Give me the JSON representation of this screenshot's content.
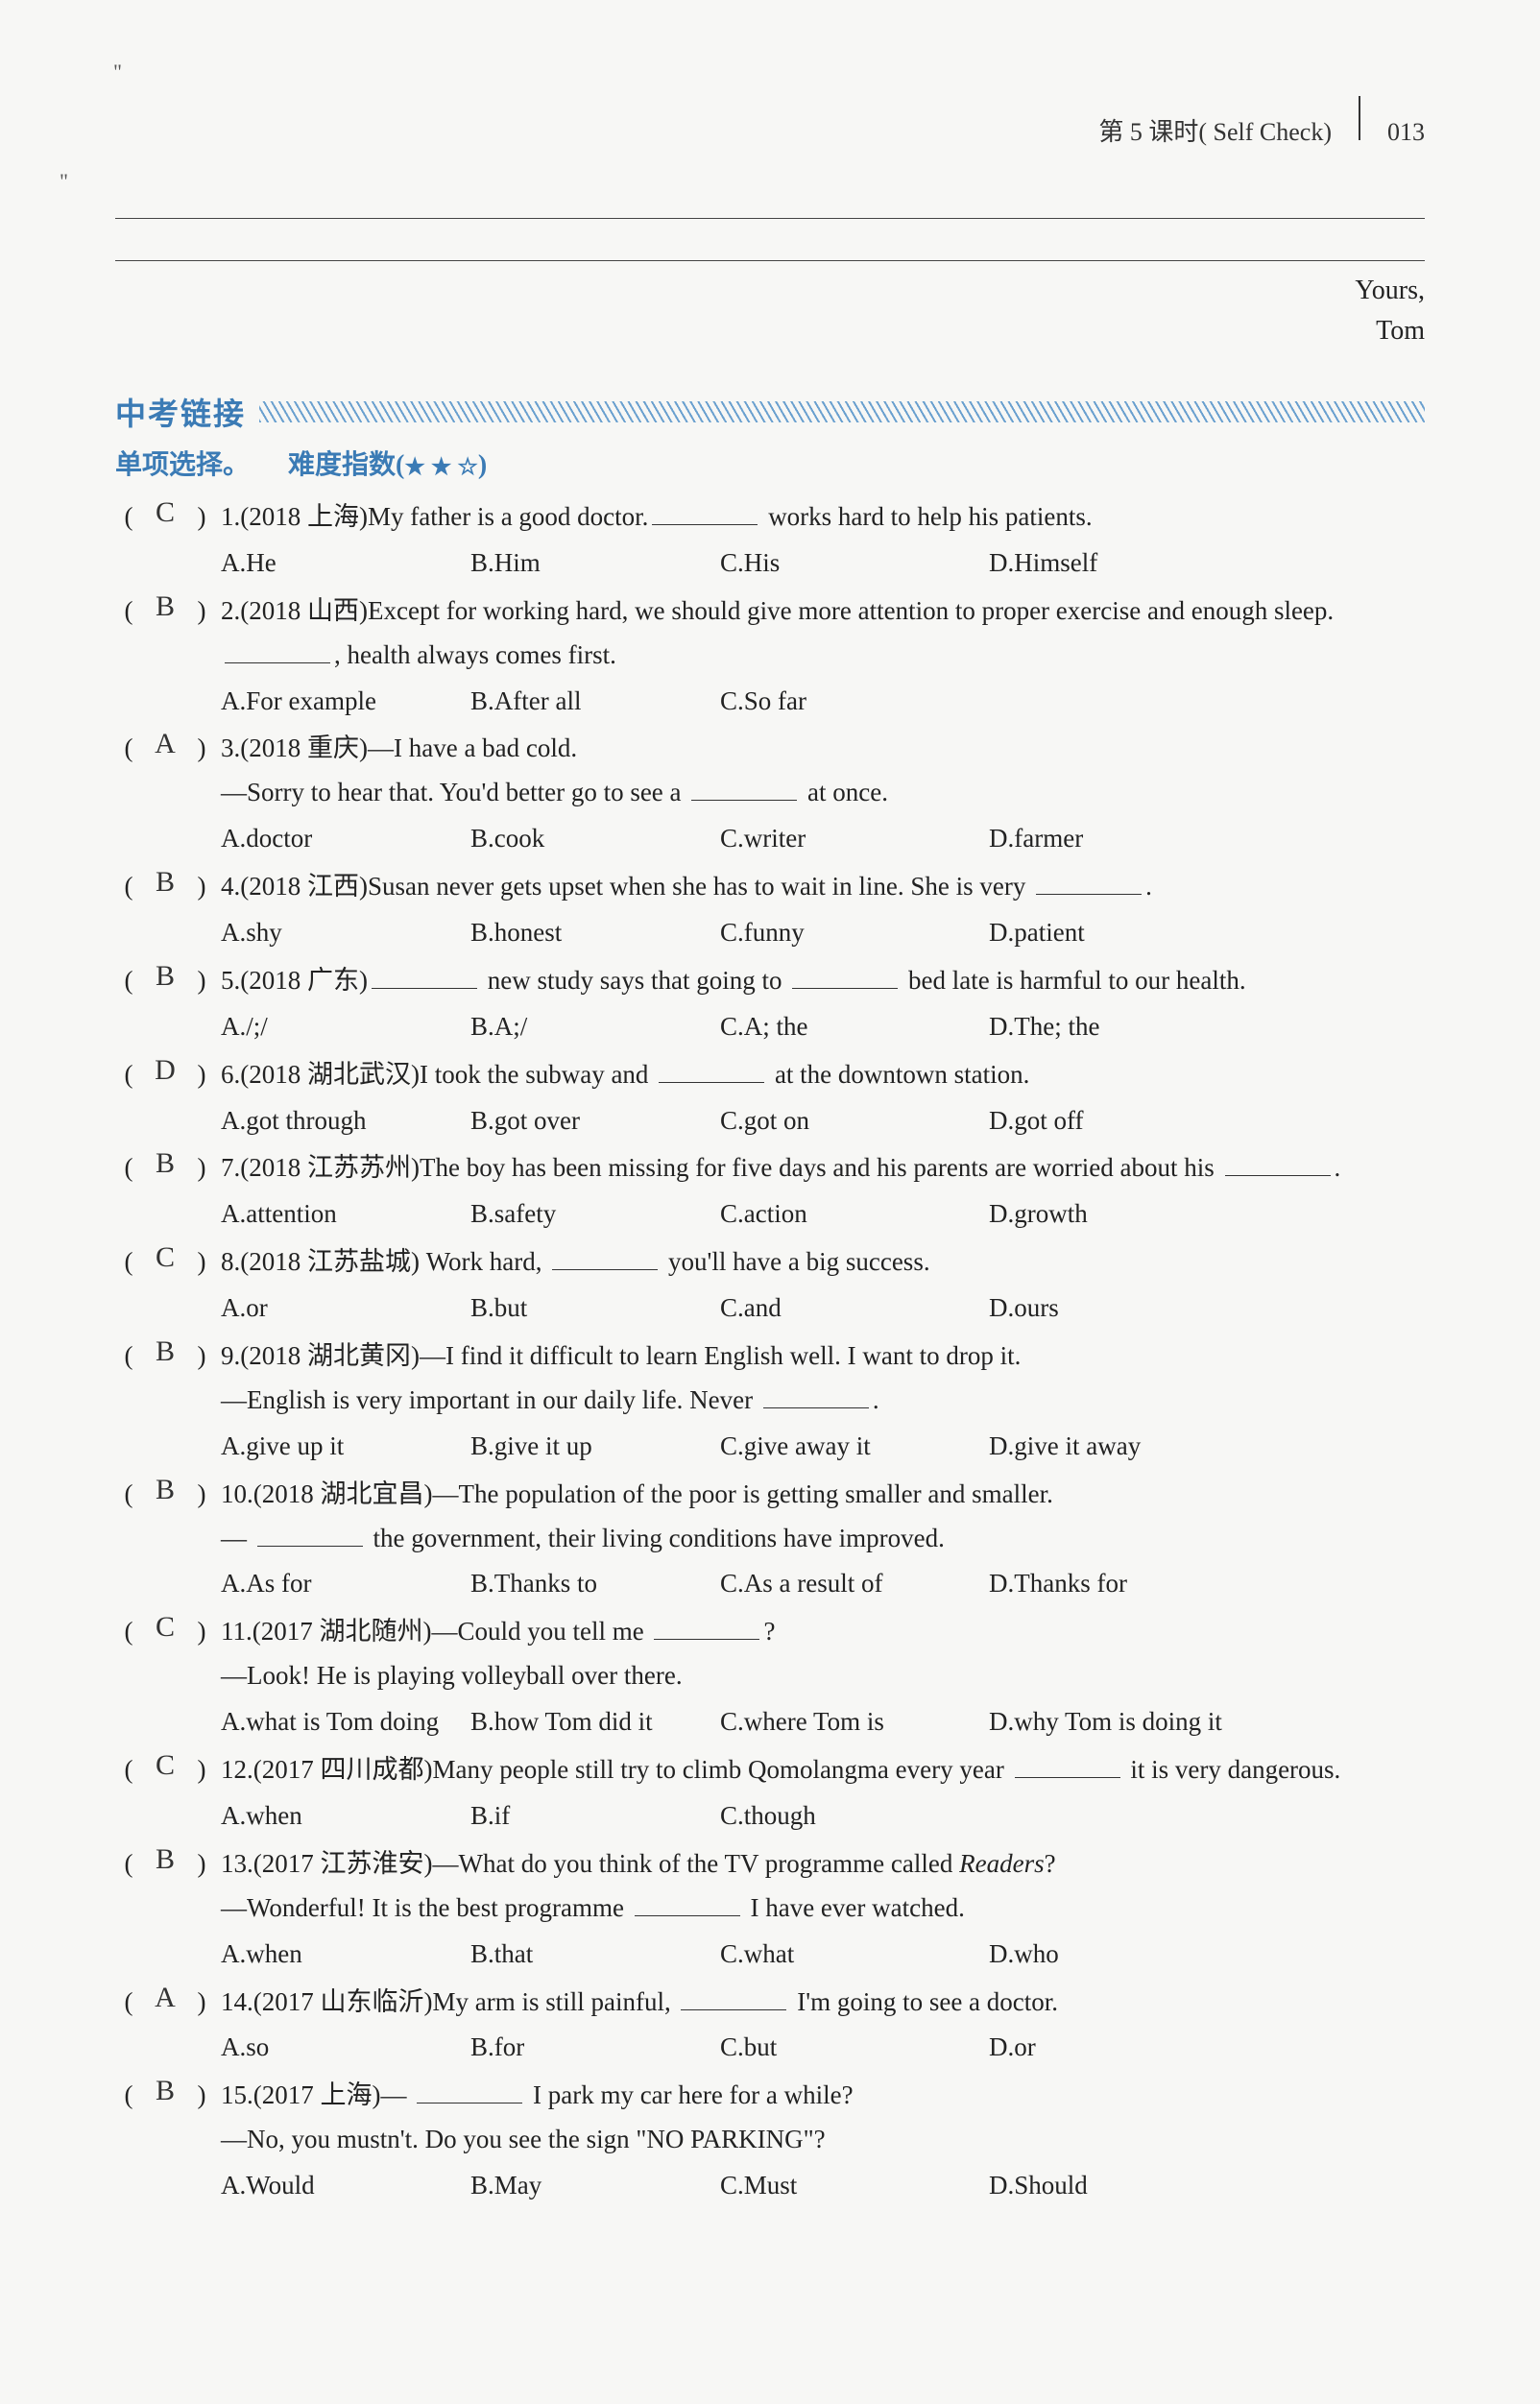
{
  "header": {
    "chapter": "第 5 课时( Self Check)",
    "page_num": "013"
  },
  "signoff": {
    "yours": "Yours,",
    "name": "Tom"
  },
  "section": {
    "title": "中考链接",
    "subtitle": "单项选择。",
    "difficulty_label": "难度指数(",
    "stars": "★ ★ ☆",
    "difficulty_close": ")"
  },
  "option_col_widths": [
    260,
    260,
    280,
    260
  ],
  "questions": [
    {
      "answer": "C",
      "num": "1.",
      "source": "(2018 上海)",
      "stem_parts": [
        "My father is a good doctor.",
        "BLANK",
        " works hard to help his patients."
      ],
      "options": [
        "A.He",
        "B.Him",
        "C.His",
        "D.Himself"
      ]
    },
    {
      "answer": "B",
      "num": "2.",
      "source": "(2018 山西)",
      "stem_parts": [
        "Except for working hard, we should give more attention to proper exercise and enough sleep."
      ],
      "cont_parts": [
        "BLANK",
        ", health always comes first."
      ],
      "options": [
        "A.For example",
        "B.After all",
        "C.So far",
        ""
      ]
    },
    {
      "answer": "A",
      "num": "3.",
      "source": "(2018 重庆)",
      "stem_parts": [
        "—I have a bad cold."
      ],
      "cont_parts": [
        "—Sorry to hear that. You'd better go to see a ",
        "BLANK",
        " at once."
      ],
      "options": [
        "A.doctor",
        "B.cook",
        "C.writer",
        "D.farmer"
      ]
    },
    {
      "answer": "B",
      "num": "4.",
      "source": "(2018 江西)",
      "stem_parts": [
        "Susan never gets upset when she has to wait in line. She is very ",
        "BLANK",
        "."
      ],
      "options": [
        "A.shy",
        "B.honest",
        "C.funny",
        "D.patient"
      ]
    },
    {
      "answer": "B",
      "num": "5.",
      "source": "(2018 广东)",
      "stem_parts": [
        "BLANK",
        " new study says that going to ",
        "BLANK",
        " bed late is harmful to our health."
      ],
      "options": [
        "A./;/",
        "B.A;/",
        "C.A; the",
        "D.The; the"
      ]
    },
    {
      "answer": "D",
      "num": "6.",
      "source": "(2018 湖北武汉)",
      "stem_parts": [
        "I took the subway and ",
        "BLANK",
        " at the downtown station."
      ],
      "options": [
        "A.got through",
        "B.got over",
        "C.got on",
        "D.got off"
      ]
    },
    {
      "answer": "B",
      "num": "7.",
      "source": "(2018 江苏苏州)",
      "stem_parts": [
        "The boy has been missing for five days and his parents are worried about his ",
        "BLANK",
        "."
      ],
      "options": [
        "A.attention",
        "B.safety",
        "C.action",
        "D.growth"
      ]
    },
    {
      "answer": "C",
      "num": "8.",
      "source": "(2018 江苏盐城)",
      "stem_parts": [
        " Work hard, ",
        "BLANK",
        " you'll have a big success."
      ],
      "options": [
        "A.or",
        "B.but",
        "C.and",
        "D.ours"
      ]
    },
    {
      "answer": "B",
      "num": "9.",
      "source": "(2018 湖北黄冈)",
      "stem_parts": [
        "—I find it difficult to learn English well. I want to drop it."
      ],
      "cont_parts": [
        "—English is very important in our daily life. Never ",
        "BLANK",
        "."
      ],
      "options": [
        "A.give up it",
        "B.give it up",
        "C.give away it",
        "D.give it away"
      ]
    },
    {
      "answer": "B",
      "num": "10.",
      "source": "(2018 湖北宜昌)",
      "stem_parts": [
        "—The population of the poor is getting smaller and smaller."
      ],
      "cont_parts": [
        "— ",
        "BLANK",
        " the government, their living conditions have improved."
      ],
      "options": [
        "A.As for",
        "B.Thanks to",
        "C.As a result of",
        "D.Thanks for"
      ]
    },
    {
      "answer": "C",
      "num": "11.",
      "source": "(2017 湖北随州)",
      "stem_parts": [
        "—Could you tell me ",
        "BLANK",
        "?"
      ],
      "cont_parts": [
        "—Look!  He is playing volleyball over there."
      ],
      "options": [
        "A.what is Tom doing",
        "B.how Tom did it",
        "C.where Tom is",
        "D.why Tom is doing it"
      ]
    },
    {
      "answer": "C",
      "num": "12.",
      "source": "(2017 四川成都)",
      "stem_parts": [
        "Many people still try to climb Qomolangma every year ",
        "BLANK",
        " it is very dangerous."
      ],
      "options": [
        "A.when",
        "B.if",
        "C.though",
        ""
      ]
    },
    {
      "answer": "B",
      "num": "13.",
      "source": "(2017 江苏淮安)",
      "stem_parts_rich": [
        {
          "t": "—What do you think of the TV programme called "
        },
        {
          "t": "Readers",
          "italic": true
        },
        {
          "t": "?"
        }
      ],
      "cont_parts": [
        "—Wonderful!  It is the best programme ",
        "BLANK",
        " I have ever watched."
      ],
      "options": [
        "A.when",
        "B.that",
        "C.what",
        "D.who"
      ]
    },
    {
      "answer": "A",
      "num": "14.",
      "source": "(2017 山东临沂)",
      "stem_parts": [
        "My arm is still painful, ",
        "BLANK",
        " I'm going to see a doctor."
      ],
      "options": [
        "A.so",
        "B.for",
        "C.but",
        "D.or"
      ]
    },
    {
      "answer": "B",
      "num": "15.",
      "source": "(2017 上海)",
      "stem_parts": [
        "— ",
        "BLANK",
        " I park my car here for a while?"
      ],
      "cont_parts": [
        "—No, you mustn't. Do you see the sign \"NO PARKING\"?"
      ],
      "options": [
        "A.Would",
        "B.May",
        "C.Must",
        "D.Should"
      ]
    }
  ]
}
